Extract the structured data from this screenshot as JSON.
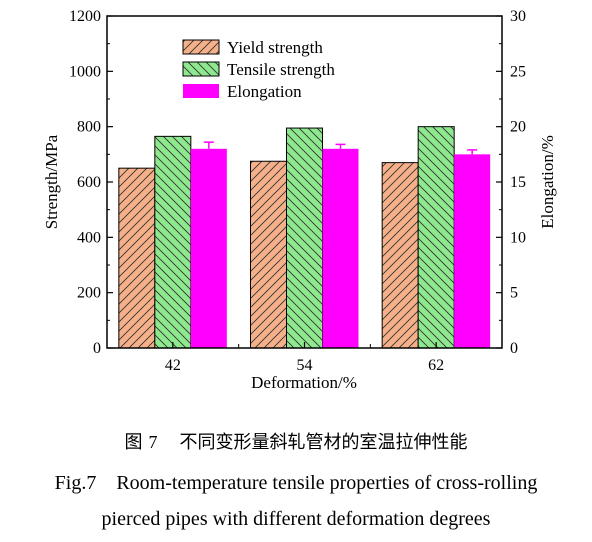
{
  "chart_data": {
    "type": "bar",
    "xlabel": "Deformation/%",
    "ylabel_left": "Strength/MPa",
    "ylabel_right": "Elongation/%",
    "categories": [
      "42",
      "54",
      "62"
    ],
    "ylim_left": [
      0,
      1200
    ],
    "yticks_left": [
      "0",
      "200",
      "400",
      "600",
      "800",
      "1000",
      "1200"
    ],
    "ylim_right": [
      0,
      30
    ],
    "yticks_right": [
      "0",
      "5",
      "10",
      "15",
      "20",
      "25",
      "30"
    ],
    "legend_position": "top-left",
    "grid": false,
    "series": [
      {
        "name": "Yield strength",
        "axis": "left",
        "values": [
          650,
          675,
          670
        ],
        "error": [
          0,
          0,
          0
        ],
        "color": "#f5b08a",
        "pattern": "hatch-diagonal-left"
      },
      {
        "name": "Tensile strength",
        "axis": "left",
        "values": [
          765,
          795,
          800
        ],
        "error": [
          0,
          0,
          0
        ],
        "color": "#8ee88e",
        "pattern": "hatch-diagonal-right"
      },
      {
        "name": "Elongation",
        "axis": "right",
        "values": [
          18.0,
          18.0,
          17.5
        ],
        "error": [
          0.6,
          0.4,
          0.4
        ],
        "color": "#ff00ff",
        "pattern": "solid"
      }
    ]
  },
  "caption": {
    "cn_label": "图",
    "cn_number": "7",
    "cn_text": "不同变形量斜轧管材的室温拉伸性能",
    "en_line1": "Fig.7    Room-temperature tensile properties of cross-rolling",
    "en_line2": "pierced pipes with different deformation degrees"
  }
}
